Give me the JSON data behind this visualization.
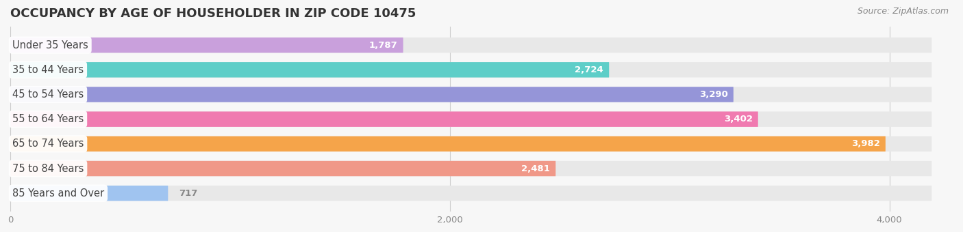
{
  "title": "OCCUPANCY BY AGE OF HOUSEHOLDER IN ZIP CODE 10475",
  "source": "Source: ZipAtlas.com",
  "categories": [
    "Under 35 Years",
    "35 to 44 Years",
    "45 to 54 Years",
    "55 to 64 Years",
    "65 to 74 Years",
    "75 to 84 Years",
    "85 Years and Over"
  ],
  "values": [
    1787,
    2724,
    3290,
    3402,
    3982,
    2481,
    717
  ],
  "bar_colors": [
    "#c9a0dc",
    "#5ecec8",
    "#9595d8",
    "#f07ab0",
    "#f5a44a",
    "#f09888",
    "#a0c4f0"
  ],
  "bar_bg_color": "#e8e8e8",
  "background_color": "#f7f7f7",
  "title_color": "#333333",
  "label_color": "#444444",
  "value_color": "#ffffff",
  "value_color_outside": "#888888",
  "xlim_max": 4300,
  "xticks": [
    0,
    2000,
    4000
  ],
  "title_fontsize": 13,
  "label_fontsize": 10.5,
  "value_fontsize": 9.5,
  "source_fontsize": 9
}
